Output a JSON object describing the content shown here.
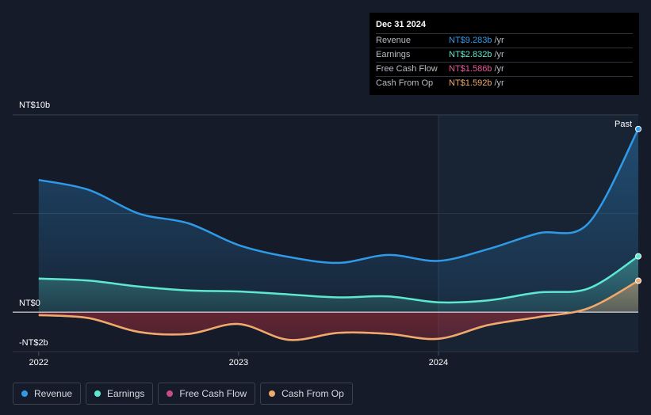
{
  "tooltip": {
    "date": "Dec 31 2024",
    "rows": [
      {
        "label": "Revenue",
        "value": "NT$9.283b",
        "unit": "/yr",
        "color": "#2f9ae8"
      },
      {
        "label": "Earnings",
        "value": "NT$2.832b",
        "unit": "/yr",
        "color": "#5ee8d2"
      },
      {
        "label": "Free Cash Flow",
        "value": "NT$1.586b",
        "unit": "/yr",
        "color": "#e8579a"
      },
      {
        "label": "Cash From Op",
        "value": "NT$1.592b",
        "unit": "/yr",
        "color": "#eeab6a"
      }
    ]
  },
  "legend": [
    {
      "label": "Revenue",
      "color": "#2f9ae8"
    },
    {
      "label": "Earnings",
      "color": "#5ee8d2"
    },
    {
      "label": "Free Cash Flow",
      "color": "#c64b86"
    },
    {
      "label": "Cash From Op",
      "color": "#eeab6a"
    }
  ],
  "chart_data": {
    "type": "area",
    "y_labels": {
      "top": "NT$10b",
      "zero": "NT$0",
      "bottom": "-NT$2b"
    },
    "past_label": "Past",
    "x_tick_labels": [
      "2022",
      "2023",
      "2024"
    ],
    "x_ticks": [
      2022.0,
      2023.0,
      2024.0
    ],
    "xlim": [
      2021.87,
      2025.0
    ],
    "ylim": [
      -2.0,
      10.0
    ],
    "past_start": 2024.0,
    "x": [
      2022.0,
      2022.25,
      2022.5,
      2022.75,
      2023.0,
      2023.25,
      2023.5,
      2023.75,
      2024.0,
      2024.25,
      2024.5,
      2024.75,
      2025.0
    ],
    "series": [
      {
        "name": "Revenue",
        "color": "#2f9ae8",
        "values": [
          6.7,
          6.2,
          5.0,
          4.5,
          3.4,
          2.8,
          2.5,
          2.9,
          2.6,
          3.2,
          4.0,
          4.5,
          9.283
        ]
      },
      {
        "name": "Earnings",
        "color": "#5ee8d2",
        "values": [
          1.7,
          1.6,
          1.3,
          1.1,
          1.05,
          0.9,
          0.75,
          0.8,
          0.5,
          0.6,
          1.0,
          1.2,
          2.832
        ]
      },
      {
        "name": "Free Cash Flow",
        "color": "#c64b86",
        "values": [
          -0.15,
          -0.3,
          -1.0,
          -1.1,
          -0.6,
          -1.4,
          -1.05,
          -1.1,
          -1.35,
          -0.65,
          -0.25,
          0.2,
          1.586
        ]
      },
      {
        "name": "Cash From Op",
        "color": "#eeab6a",
        "values": [
          -0.15,
          -0.3,
          -1.0,
          -1.1,
          -0.6,
          -1.4,
          -1.05,
          -1.1,
          -1.35,
          -0.65,
          -0.25,
          0.2,
          1.592
        ]
      }
    ]
  }
}
